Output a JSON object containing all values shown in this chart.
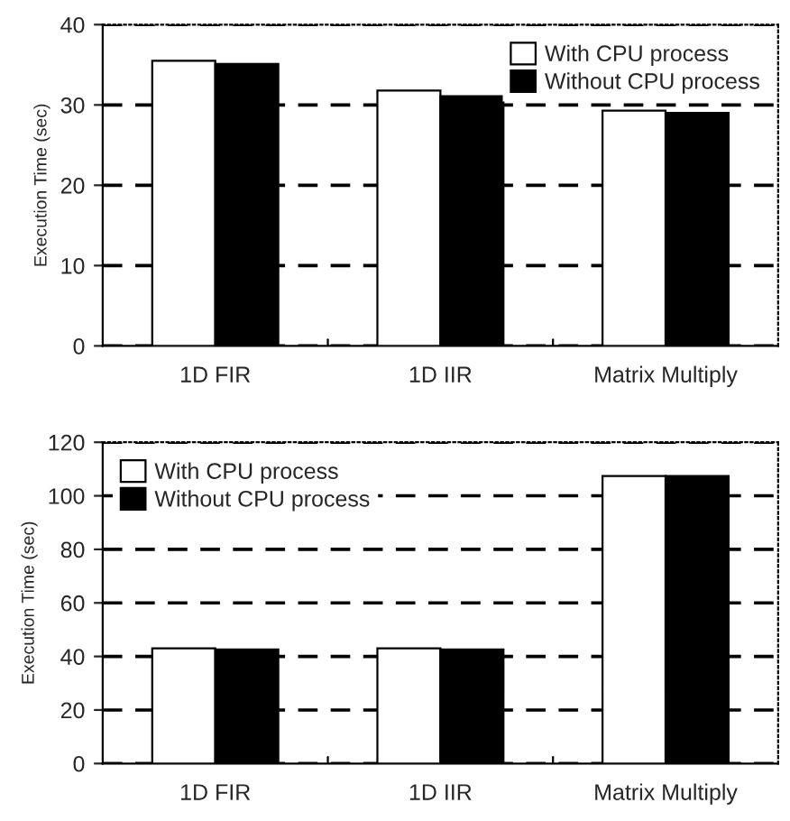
{
  "chart_data": [
    {
      "type": "bar",
      "ylabel": "Execution Time (sec)",
      "categories": [
        "1D FIR",
        "1D IIR",
        "Matrix Multiply"
      ],
      "ylim": [
        0,
        40
      ],
      "yticks": [
        0,
        10,
        20,
        30,
        40
      ],
      "grid": "y",
      "legend": "top right",
      "series": [
        {
          "name": "With CPU process",
          "color": "#ffffff",
          "values": [
            35.5,
            31.8,
            29.3
          ]
        },
        {
          "name": "Without CPU process",
          "color": "#000000",
          "values": [
            35.1,
            31.1,
            29.0
          ]
        }
      ]
    },
    {
      "type": "bar",
      "ylabel": "Execution Time (sec)",
      "categories": [
        "1D FIR",
        "1D IIR",
        "Matrix Multiply"
      ],
      "ylim": [
        0,
        120
      ],
      "yticks": [
        0,
        20,
        40,
        60,
        80,
        100,
        120
      ],
      "grid": "y",
      "legend": "top left",
      "series": [
        {
          "name": "With CPU process",
          "color": "#ffffff",
          "values": [
            43.0,
            43.0,
            107.4
          ]
        },
        {
          "name": "Without CPU process",
          "color": "#000000",
          "values": [
            42.6,
            42.6,
            107.4
          ]
        }
      ]
    }
  ]
}
